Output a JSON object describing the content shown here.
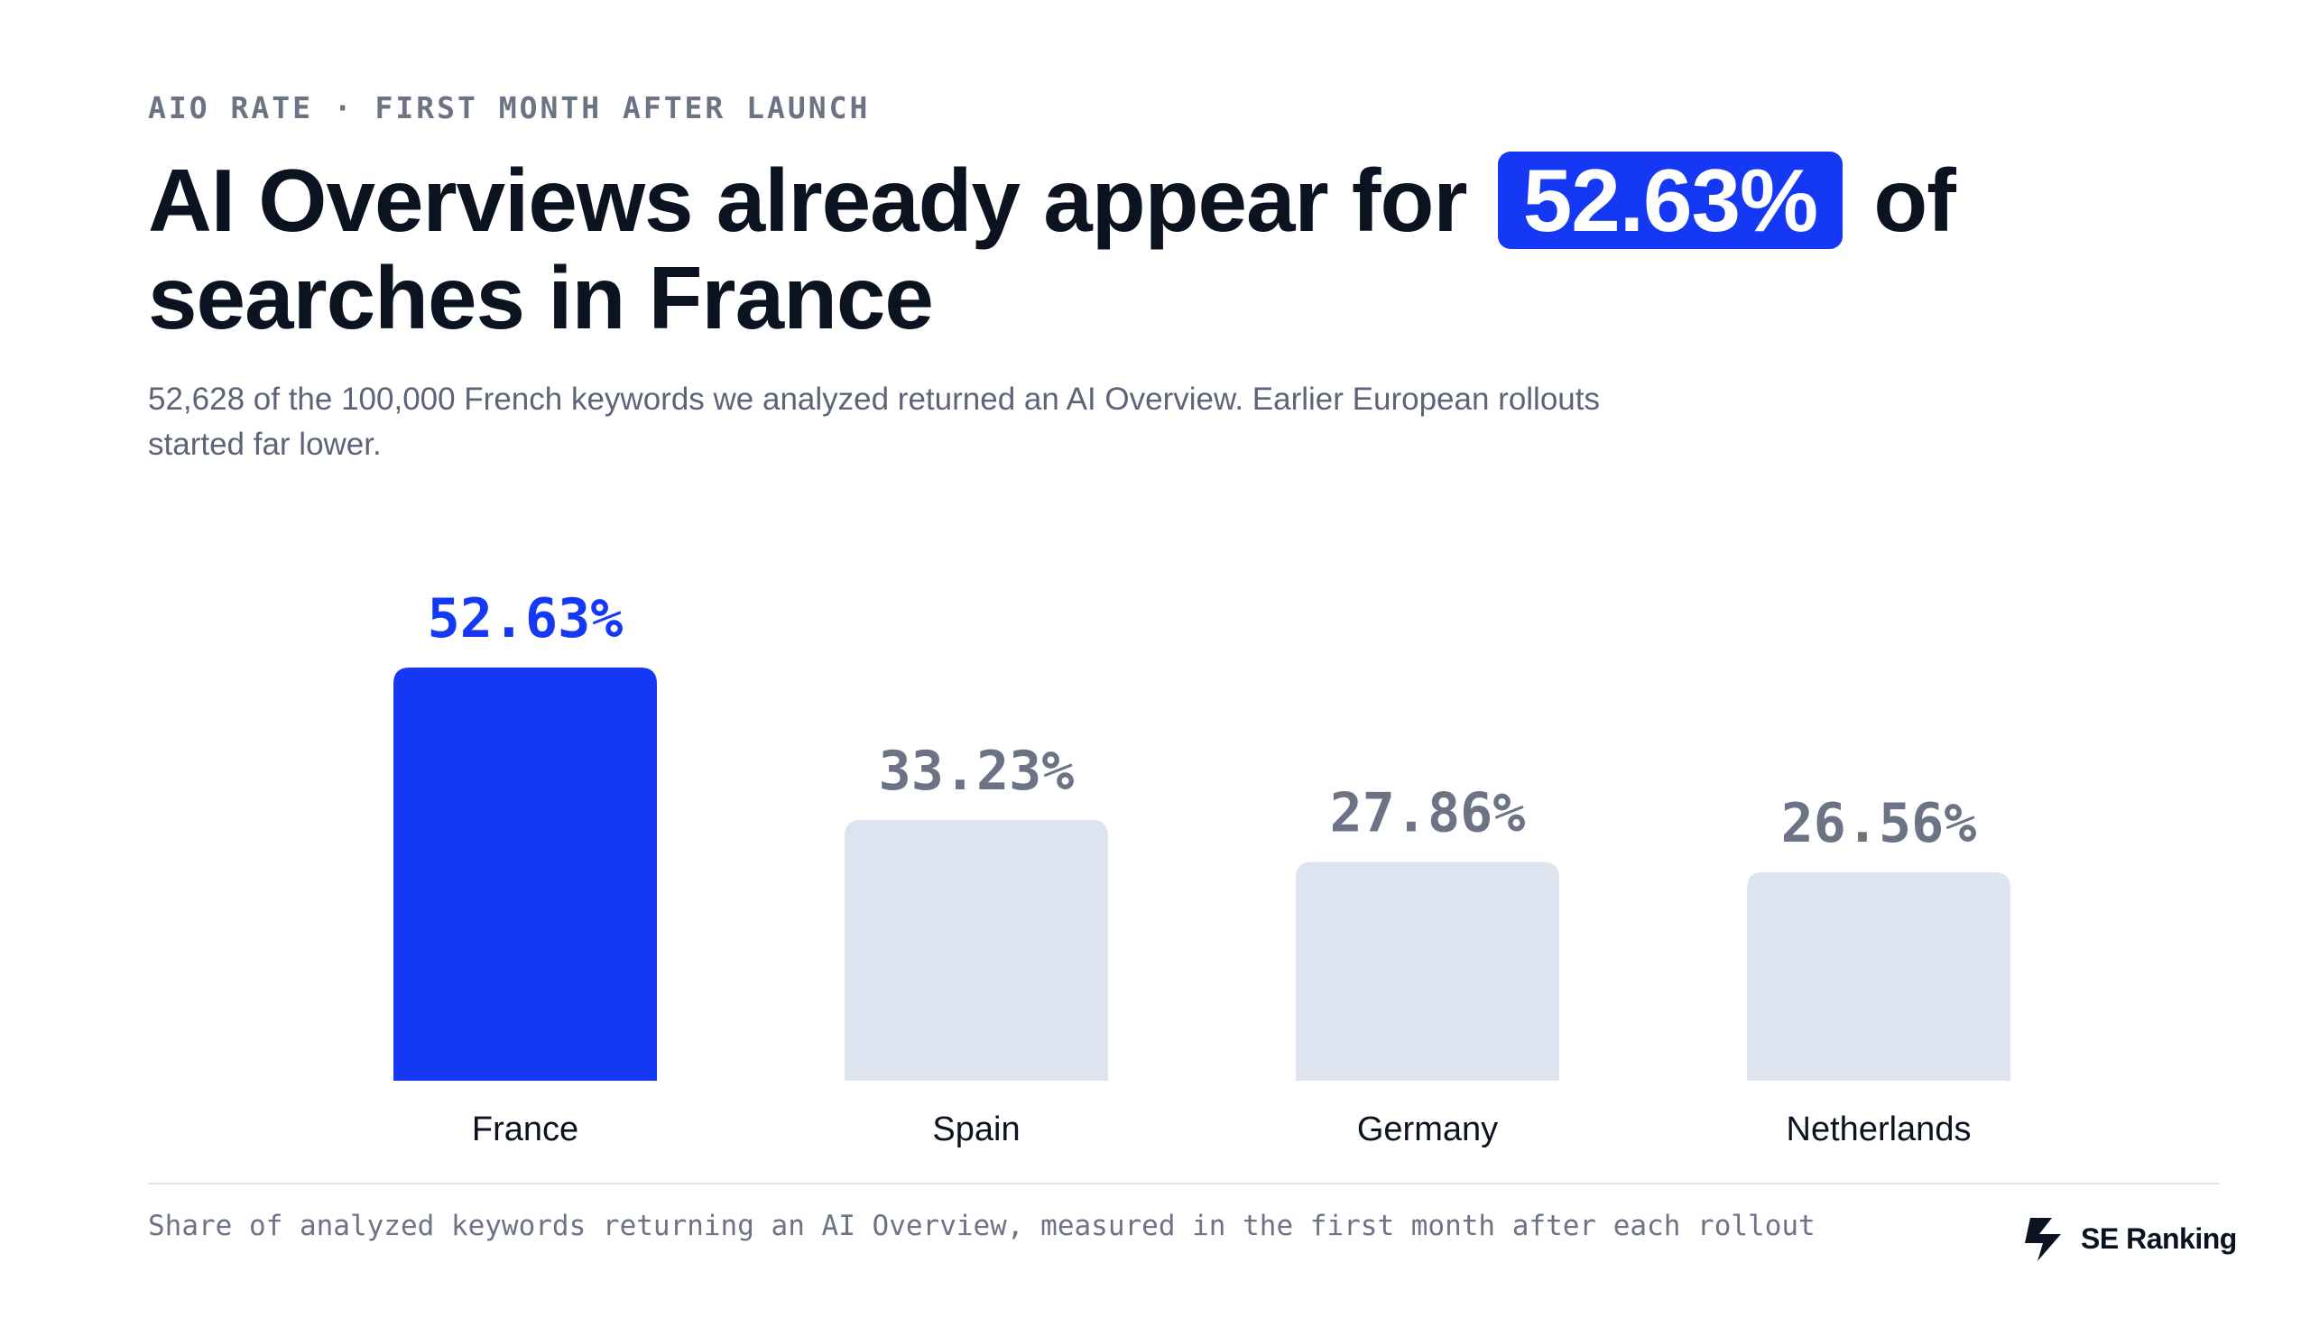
{
  "header": {
    "eyebrow": "AIO RATE · FIRST MONTH AFTER LAUNCH",
    "title_before": "AI Overviews already appear for",
    "title_highlight": "52.63%",
    "title_after": "of searches in France",
    "subtitle": "52,628 of the 100,000 French keywords we analyzed returned an AI Overview. Earlier European rollouts started far lower."
  },
  "footer": {
    "note": "Share of analyzed keywords returning an AI Overview, measured in the first month after each rollout",
    "brand": "SE Ranking",
    "brand_icon": "se-ranking-logo-icon"
  },
  "colors": {
    "accent": "#1538f5",
    "muted_bar": "#dde3ef",
    "muted_label": "#6b7385",
    "text": "#0b1220"
  },
  "chart_data": {
    "type": "bar",
    "categories": [
      "France",
      "Spain",
      "Germany",
      "Netherlands"
    ],
    "values": [
      52.63,
      33.23,
      27.86,
      26.56
    ],
    "value_labels": [
      "52.63%",
      "33.23%",
      "27.86%",
      "26.56%"
    ],
    "highlight_index": 0,
    "ylim": [
      0,
      52.63
    ],
    "grid": false,
    "legend": "none",
    "title": "",
    "xlabel": "",
    "ylabel": ""
  }
}
